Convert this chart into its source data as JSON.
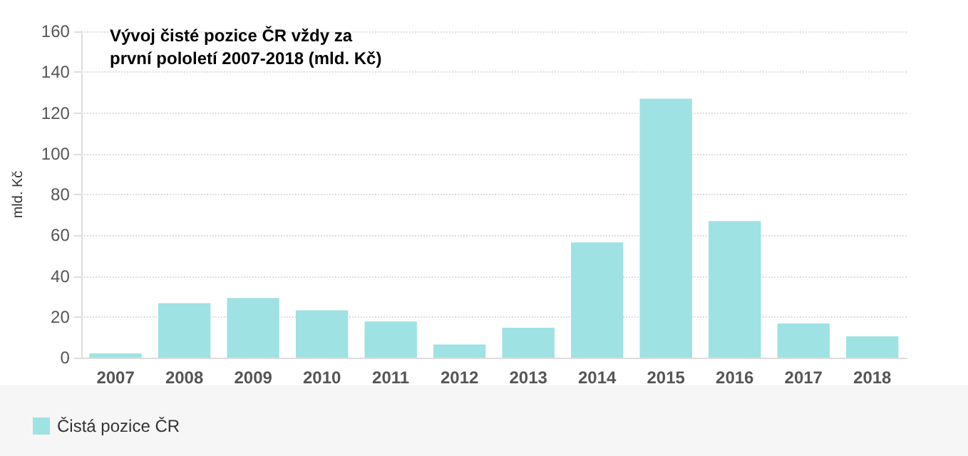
{
  "chart_data": {
    "type": "bar",
    "title": "Vývoj čisté pozice ČR vždy za\nprvní pololetí 2007-2018 (mld. Kč)",
    "ylabel": "mld. Kč",
    "categories": [
      "2007",
      "2008",
      "2009",
      "2010",
      "2011",
      "2012",
      "2013",
      "2014",
      "2015",
      "2016",
      "2017",
      "2018"
    ],
    "series": [
      {
        "name": "Čistá pozice ČR",
        "color": "#9fe2e3",
        "values": [
          2.1,
          26.7,
          29.3,
          23.2,
          17.7,
          6.5,
          14.7,
          56.5,
          127,
          67,
          16.8,
          10.5
        ]
      }
    ],
    "ylim": [
      0,
      160
    ],
    "yticks": [
      0,
      20,
      40,
      60,
      80,
      100,
      120,
      140,
      160
    ],
    "grid": "y",
    "legend": "bottom left"
  }
}
